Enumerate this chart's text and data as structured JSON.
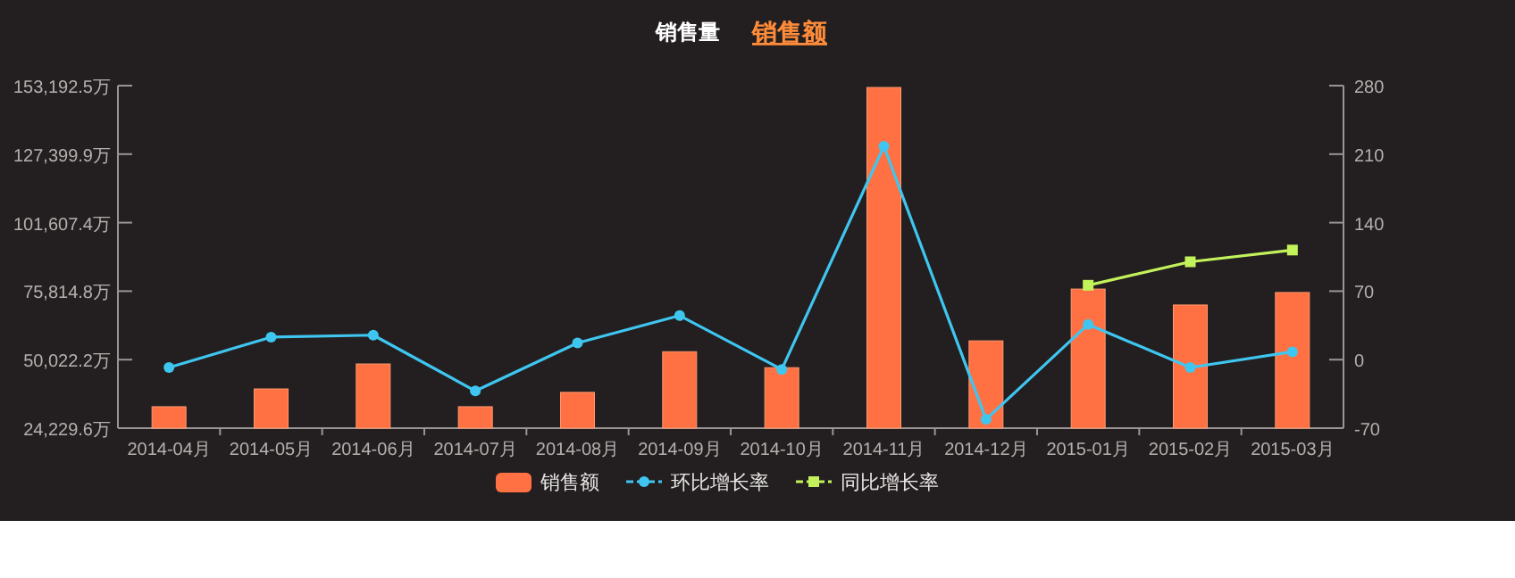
{
  "chart_data": {
    "type": "bar",
    "title": "销售额",
    "subtitle": "销售量",
    "categories": [
      "2014-04月",
      "2014-05月",
      "2014-06月",
      "2014-07月",
      "2014-08月",
      "2014-09月",
      "2014-10月",
      "2014-11月",
      "2014-12月",
      "2015-01月",
      "2015-02月",
      "2015-03月"
    ],
    "series": [
      {
        "name": "销售额",
        "color": "#ff7142",
        "values": [
          32300,
          39000,
          48400,
          32300,
          37700,
          53000,
          47000,
          152500,
          57100,
          76600,
          70600,
          75300
        ]
      },
      {
        "name": "环比增长率",
        "type": "line",
        "axis": "y2",
        "marker": "circle",
        "color": "#3fc6f0",
        "values": [
          -8,
          23,
          25,
          -32,
          17,
          45,
          -10,
          218,
          -61,
          36,
          -8,
          8
        ]
      },
      {
        "name": "同比增长率",
        "type": "line",
        "axis": "y2",
        "marker": "square",
        "color": "#c3f25a",
        "values": [
          null,
          null,
          null,
          null,
          null,
          null,
          null,
          null,
          null,
          76,
          100,
          112
        ]
      }
    ],
    "ylim": [
      24229.6,
      153192.5
    ],
    "yticks": [
      {
        "value": 24229.6,
        "label": "24,229.6万"
      },
      {
        "value": 50022.2,
        "label": "50,022.2万"
      },
      {
        "value": 75814.8,
        "label": "75,814.8万"
      },
      {
        "value": 101607.4,
        "label": "101,607.4万"
      },
      {
        "value": 127399.9,
        "label": "127,399.9万"
      },
      {
        "value": 153192.5,
        "label": "153,192.5万"
      }
    ],
    "y2lim": [
      -70,
      280
    ],
    "y2ticks": [
      -70,
      0,
      70,
      140,
      210,
      280
    ],
    "legend": "bottom",
    "grid": false
  }
}
